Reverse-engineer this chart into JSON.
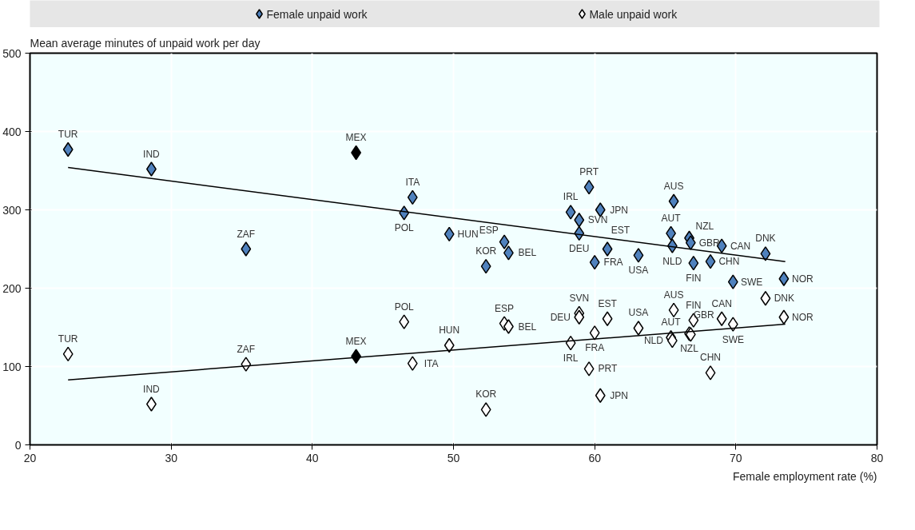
{
  "chart_data": {
    "type": "scatter",
    "ylabel": "Mean average minutes of unpaid work per day",
    "xlabel": "Female employment rate (%)",
    "xlim": [
      20,
      80
    ],
    "xticks": [
      20,
      30,
      40,
      50,
      60,
      70,
      80
    ],
    "ylim": [
      0,
      500
    ],
    "yticks": [
      0,
      100,
      200,
      300,
      400,
      500
    ],
    "grid": true,
    "legend": "top",
    "series": [
      {
        "name": "Female unpaid work",
        "marker": "diamond",
        "color": "#4f81bd",
        "x": [
          22.7,
          28.6,
          35.3,
          43.1,
          46.5,
          47.1,
          49.7,
          52.3,
          53.6,
          53.9,
          58.3,
          58.9,
          58.9,
          59.6,
          60.0,
          60.4,
          60.9,
          63.1,
          65.4,
          65.5,
          65.6,
          66.7,
          66.8,
          67.0,
          68.2,
          69.0,
          69.8,
          72.1,
          73.4
        ],
        "values": [
          377,
          352,
          250,
          373,
          296,
          316,
          269,
          228,
          259,
          245,
          297,
          287,
          270,
          329,
          233,
          300,
          250,
          242,
          270,
          254,
          311,
          264,
          258,
          232,
          234,
          254,
          208,
          244,
          212
        ],
        "colors": [
          "#4f81bd",
          "#4f81bd",
          "#4f81bd",
          "#000000",
          "#4f81bd",
          "#4f81bd",
          "#4f81bd",
          "#4f81bd",
          "#4f81bd",
          "#4f81bd",
          "#4f81bd",
          "#4f81bd",
          "#4f81bd",
          "#4f81bd",
          "#4f81bd",
          "#4f81bd",
          "#4f81bd",
          "#4f81bd",
          "#4f81bd",
          "#4f81bd",
          "#4f81bd",
          "#4f81bd",
          "#4f81bd",
          "#4f81bd",
          "#4f81bd",
          "#4f81bd",
          "#4f81bd",
          "#4f81bd",
          "#4f81bd"
        ]
      },
      {
        "name": "Male unpaid work",
        "marker": "diamond",
        "color": "#ffffff",
        "x": [
          22.7,
          28.6,
          35.3,
          43.1,
          46.5,
          47.1,
          49.7,
          52.3,
          53.6,
          53.9,
          58.3,
          58.9,
          58.9,
          59.6,
          60.0,
          60.4,
          60.9,
          63.1,
          65.4,
          65.5,
          65.6,
          66.7,
          66.8,
          67.0,
          68.2,
          69.0,
          69.8,
          72.1,
          73.4
        ],
        "values": [
          116,
          52,
          103,
          113,
          157,
          104,
          127,
          45,
          155,
          151,
          130,
          168,
          163,
          97,
          143,
          63,
          161,
          149,
          137,
          133,
          172,
          142,
          141,
          159,
          92,
          161,
          154,
          187,
          163
        ],
        "colors": [
          "#ffffff",
          "#ffffff",
          "#ffffff",
          "#000000",
          "#ffffff",
          "#ffffff",
          "#ffffff",
          "#ffffff",
          "#ffffff",
          "#ffffff",
          "#ffffff",
          "#ffffff",
          "#ffffff",
          "#ffffff",
          "#ffffff",
          "#ffffff",
          "#ffffff",
          "#ffffff",
          "#ffffff",
          "#ffffff",
          "#ffffff",
          "#ffffff",
          "#ffffff",
          "#ffffff",
          "#ffffff",
          "#ffffff",
          "#ffffff",
          "#ffffff",
          "#ffffff"
        ]
      },
      {
        "type": "line",
        "marker": "none",
        "color": "#000000",
        "x": [
          22.7,
          73.5
        ],
        "values": [
          354,
          234
        ]
      },
      {
        "type": "line",
        "marker": "none",
        "color": "#000000",
        "x": [
          22.7,
          73.5
        ],
        "values": [
          83,
          154
        ]
      }
    ],
    "annotations": [
      {
        "text": "TUR",
        "x": 22.7,
        "y": 377
      },
      {
        "text": "IND",
        "x": 28.6,
        "y": 352
      },
      {
        "text": "ZAF",
        "x": 35.3,
        "y": 250
      },
      {
        "text": "MEX",
        "x": 43.1,
        "y": 373
      },
      {
        "text": "POL",
        "x": 46.5,
        "y": 296
      },
      {
        "text": "ITA",
        "x": 47.1,
        "y": 316
      },
      {
        "text": "HUN",
        "x": 49.7,
        "y": 269
      },
      {
        "text": "KOR",
        "x": 52.3,
        "y": 228
      },
      {
        "text": "ESP",
        "x": 53.6,
        "y": 259
      },
      {
        "text": "BEL",
        "x": 53.9,
        "y": 245
      },
      {
        "text": "IRL",
        "x": 58.3,
        "y": 297
      },
      {
        "text": "SVN",
        "x": 58.9,
        "y": 287
      },
      {
        "text": "DEU",
        "x": 58.9,
        "y": 270
      },
      {
        "text": "PRT",
        "x": 59.6,
        "y": 329
      },
      {
        "text": "FRA",
        "x": 60.0,
        "y": 233
      },
      {
        "text": "JPN",
        "x": 60.4,
        "y": 300
      },
      {
        "text": "EST",
        "x": 60.9,
        "y": 250
      },
      {
        "text": "USA",
        "x": 63.1,
        "y": 242
      },
      {
        "text": "AUT",
        "x": 65.4,
        "y": 270
      },
      {
        "text": "NLD",
        "x": 65.5,
        "y": 254
      },
      {
        "text": "AUS",
        "x": 65.6,
        "y": 311
      },
      {
        "text": "NZL",
        "x": 66.7,
        "y": 264
      },
      {
        "text": "GBR",
        "x": 66.8,
        "y": 258
      },
      {
        "text": "FIN",
        "x": 67.0,
        "y": 232
      },
      {
        "text": "CHN",
        "x": 68.2,
        "y": 234
      },
      {
        "text": "CAN",
        "x": 69.0,
        "y": 254
      },
      {
        "text": "SWE",
        "x": 69.8,
        "y": 208
      },
      {
        "text": "DNK",
        "x": 72.1,
        "y": 244
      },
      {
        "text": "NOR",
        "x": 73.4,
        "y": 212
      },
      {
        "text": "TUR",
        "x": 22.7,
        "y": 116
      },
      {
        "text": "IND",
        "x": 28.6,
        "y": 52
      },
      {
        "text": "ZAF",
        "x": 35.3,
        "y": 103
      },
      {
        "text": "MEX",
        "x": 43.1,
        "y": 113
      },
      {
        "text": "POL",
        "x": 46.5,
        "y": 157
      },
      {
        "text": "ITA",
        "x": 47.1,
        "y": 104
      },
      {
        "text": "HUN",
        "x": 49.7,
        "y": 127
      },
      {
        "text": "KOR",
        "x": 52.3,
        "y": 45
      },
      {
        "text": "ESP",
        "x": 53.6,
        "y": 155
      },
      {
        "text": "BEL",
        "x": 53.9,
        "y": 151
      },
      {
        "text": "IRL",
        "x": 58.3,
        "y": 130
      },
      {
        "text": "SVN",
        "x": 58.9,
        "y": 168
      },
      {
        "text": "DEU",
        "x": 58.9,
        "y": 163
      },
      {
        "text": "PRT",
        "x": 59.6,
        "y": 97
      },
      {
        "text": "FRA",
        "x": 60.0,
        "y": 143
      },
      {
        "text": "JPN",
        "x": 60.4,
        "y": 63
      },
      {
        "text": "EST",
        "x": 60.9,
        "y": 161
      },
      {
        "text": "USA",
        "x": 63.1,
        "y": 149
      },
      {
        "text": "AUT",
        "x": 65.4,
        "y": 137
      },
      {
        "text": "NLD",
        "x": 65.5,
        "y": 133
      },
      {
        "text": "AUS",
        "x": 65.6,
        "y": 172
      },
      {
        "text": "NZL",
        "x": 66.7,
        "y": 142
      },
      {
        "text": "GBR",
        "x": 66.8,
        "y": 141
      },
      {
        "text": "FIN",
        "x": 67.0,
        "y": 159
      },
      {
        "text": "CHN",
        "x": 68.2,
        "y": 92
      },
      {
        "text": "CAN",
        "x": 69.0,
        "y": 161
      },
      {
        "text": "SWE",
        "x": 69.8,
        "y": 154
      },
      {
        "text": "DNK",
        "x": 72.1,
        "y": 187
      },
      {
        "text": "NOR",
        "x": 73.4,
        "y": 163
      }
    ]
  }
}
